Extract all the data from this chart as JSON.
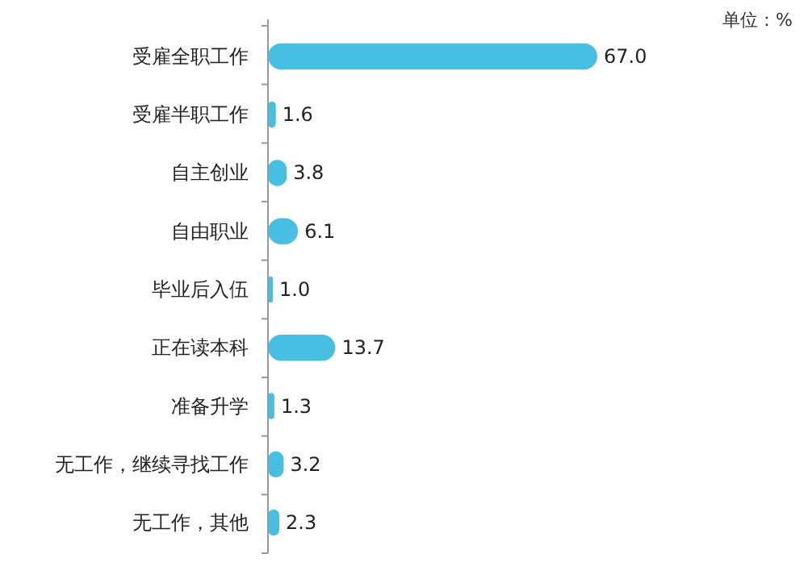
{
  "chart_data": {
    "type": "bar",
    "orientation": "horizontal",
    "categories": [
      "受雇全职工作",
      "受雇半职工作",
      "自主创业",
      "自由职业",
      "毕业后入伍",
      "正在读本科",
      "准备升学",
      "无工作，继续寻找工作",
      "无工作，其他"
    ],
    "values": [
      67.0,
      1.6,
      3.8,
      6.1,
      1.0,
      13.7,
      1.3,
      3.2,
      2.3
    ],
    "value_labels": [
      "67.0",
      "1.6",
      "3.8",
      "6.1",
      "1.0",
      "13.7",
      "1.3",
      "3.2",
      "2.3"
    ],
    "color": "#46bfe3",
    "annotations": [
      "单位：%"
    ]
  }
}
